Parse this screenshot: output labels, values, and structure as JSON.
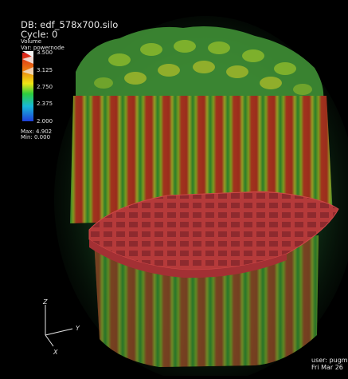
{
  "header": {
    "db": "DB: edf_578x700.silo",
    "cycle": "Cycle: 0"
  },
  "legend": {
    "type": "Volume",
    "variable": "Var: powernode",
    "ticks": [
      "3.500",
      "3.125",
      "2.750",
      "2.375",
      "2.000"
    ],
    "max": "Max: 4.902",
    "min": "Min: 0.000",
    "colors": [
      "#d81c1c",
      "#ec7a10",
      "#f0e614",
      "#2ccd3e",
      "#18b8d8",
      "#1e3fd8"
    ]
  },
  "axes": {
    "z": "Z",
    "y": "Y",
    "x": "X"
  },
  "footer": {
    "user": "user: pugm",
    "date": "Fri Mar 26"
  }
}
